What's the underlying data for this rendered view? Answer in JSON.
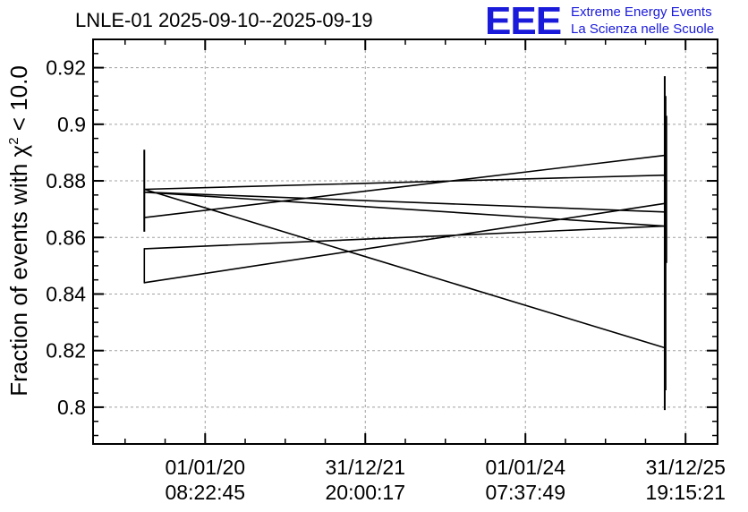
{
  "header": {
    "title": "LNLE-01 2025-09-10--2025-09-19",
    "logo_text": "EEE",
    "org_line1": "Extreme Energy Events",
    "org_line2": "La Scienza nelle Scuole"
  },
  "colors": {
    "brand": "#1a1adb",
    "line": "#000000",
    "grid": "#a0a0a0"
  },
  "chart_data": {
    "type": "line",
    "title": "LNLE-01 2025-09-10--2025-09-19",
    "ylabel_prefix": "Fraction of events with χ",
    "ylabel_sup": "2",
    "ylabel_suffix": " < 10.0",
    "xlabel": "",
    "x_ticks": [
      {
        "date": "01/01/20",
        "time": "08:22:45",
        "t": 0.0
      },
      {
        "date": "31/12/21",
        "time": "20:00:17",
        "t": 1.0
      },
      {
        "date": "01/01/24",
        "time": "07:37:49",
        "t": 2.0
      },
      {
        "date": "31/12/25",
        "time": "19:15:21",
        "t": 3.0
      }
    ],
    "xlim": [
      -0.7,
      3.2
    ],
    "ylim": [
      0.787,
      0.93
    ],
    "y_ticks": [
      0.8,
      0.82,
      0.84,
      0.86,
      0.88,
      0.9,
      0.92
    ],
    "grid": true,
    "series": [
      {
        "x": [
          -0.38,
          -0.38,
          2.87,
          2.87,
          -0.38,
          -0.38,
          2.87,
          2.87,
          -0.38,
          2.87,
          2.87,
          -0.38,
          -0.38,
          2.87
        ],
        "y": [
          0.877,
          0.877,
          0.821,
          0.872,
          0.844,
          0.856,
          0.864,
          0.869,
          0.876,
          0.864,
          0.882,
          0.877,
          0.867,
          0.889
        ]
      }
    ],
    "error_bars": [
      {
        "x": -0.38,
        "low": 0.862,
        "high": 0.891
      },
      {
        "x": 2.87,
        "low": 0.799,
        "high": 0.917
      },
      {
        "x": 2.875,
        "low": 0.806,
        "high": 0.91
      },
      {
        "x": 2.88,
        "low": 0.851,
        "high": 0.903
      }
    ]
  }
}
